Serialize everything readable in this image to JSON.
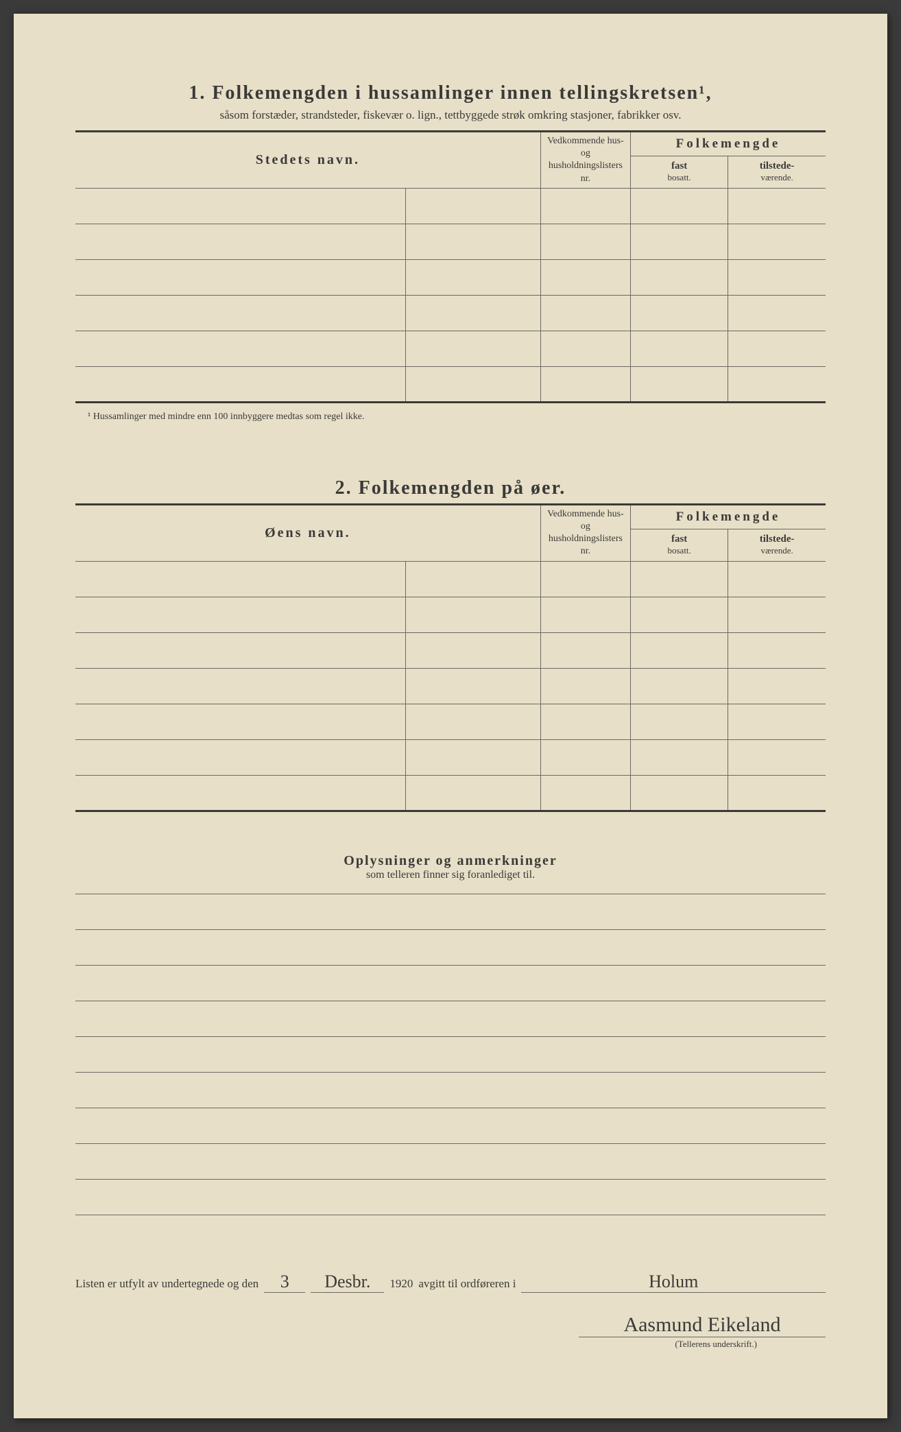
{
  "section1": {
    "number": "1.",
    "title": "Folkemengden i hussamlinger innen tellingskretsen¹,",
    "subtitle": "såsom forstæder, strandsteder, fiskevær o. lign., tettbyggede strøk omkring stasjoner, fabrikker osv.",
    "col_name": "Stedets navn.",
    "col_ref": "Vedkommende hus- og husholdningslisters nr.",
    "col_folk": "Folkemengde",
    "col_fast": "fast",
    "col_fast_sub": "bosatt.",
    "col_til": "tilstede-",
    "col_til_sub": "værende.",
    "footnote": "¹ Hussamlinger med mindre enn 100 innbyggere medtas som regel ikke.",
    "row_count": 6
  },
  "section2": {
    "number": "2.",
    "title": "Folkemengden på øer.",
    "col_name": "Øens navn.",
    "col_ref": "Vedkommende hus- og husholdningslisters nr.",
    "col_folk": "Folkemengde",
    "col_fast": "fast",
    "col_fast_sub": "bosatt.",
    "col_til": "tilstede-",
    "col_til_sub": "værende.",
    "row_count": 7
  },
  "remarks": {
    "title": "Oplysninger og anmerkninger",
    "subtitle": "som telleren finner sig foranlediget til.",
    "line_count": 9
  },
  "signature": {
    "prefix": "Listen er utfylt av undertegnede og den",
    "day": "3",
    "month": "Desbr.",
    "year": "1920",
    "mid": "avgitt til ordføreren i",
    "place": "Holum",
    "name": "Aasmund Eikeland",
    "caption": "(Tellerens underskrift.)"
  },
  "colors": {
    "paper": "#e8dfc8",
    "ink": "#3a3a38",
    "rule": "#6a6a60"
  }
}
